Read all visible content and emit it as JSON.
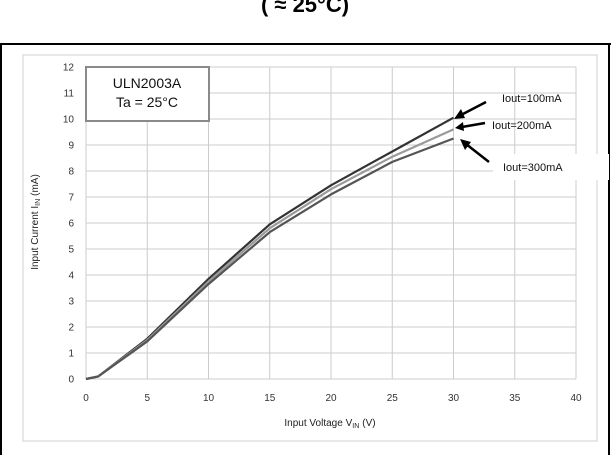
{
  "header_fragment": "(  ≈ 25°C)",
  "chart_data": {
    "type": "line",
    "title": "",
    "xlabel": {
      "main": "Input Voltage V",
      "sub": "IN",
      "unit": "(V)"
    },
    "ylabel": {
      "main": "Input Current I",
      "sub": "IN",
      "unit": "(mA)"
    },
    "xlim": [
      0,
      40
    ],
    "ylim": [
      0,
      12
    ],
    "xticks": [
      0,
      5,
      10,
      15,
      20,
      25,
      30,
      35,
      40
    ],
    "yticks": [
      0,
      1,
      2,
      3,
      4,
      5,
      6,
      7,
      8,
      9,
      10,
      11,
      12
    ],
    "grid": true,
    "info_box": {
      "line1": "ULN2003A",
      "line2": "Ta = 25°C"
    },
    "series": [
      {
        "name": "Iout=100mA",
        "color": "#333333",
        "x": [
          0,
          1,
          5,
          10,
          15,
          20,
          25,
          30
        ],
        "y": [
          0,
          0.1,
          1.55,
          3.85,
          5.95,
          7.45,
          8.75,
          10.05
        ]
      },
      {
        "name": "Iout=200mA",
        "color": "#9a9a9a",
        "x": [
          0,
          1,
          5,
          10,
          15,
          20,
          25,
          30
        ],
        "y": [
          0,
          0.1,
          1.5,
          3.75,
          5.8,
          7.3,
          8.55,
          9.6
        ]
      },
      {
        "name": "Iout=300mA",
        "color": "#555555",
        "x": [
          0,
          1,
          5,
          10,
          15,
          20,
          25,
          30
        ],
        "y": [
          0,
          0.1,
          1.45,
          3.65,
          5.65,
          7.1,
          8.35,
          9.25
        ]
      }
    ]
  }
}
